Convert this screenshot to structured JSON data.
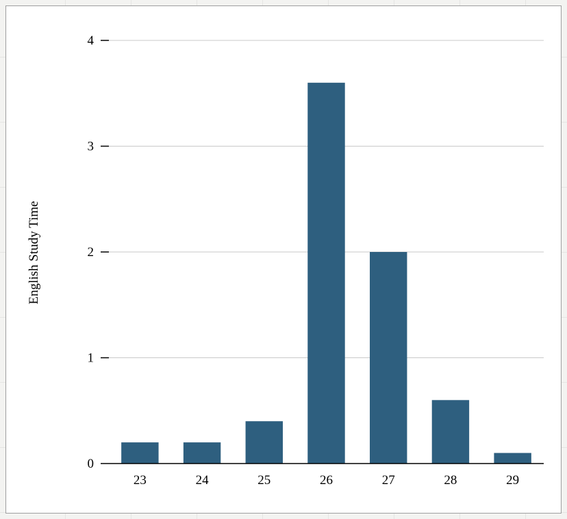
{
  "chart_data": {
    "type": "bar",
    "categories": [
      "23",
      "24",
      "25",
      "26",
      "27",
      "28",
      "29"
    ],
    "values": [
      0.2,
      0.2,
      0.4,
      3.6,
      2.0,
      0.6,
      0.1
    ],
    "title": "",
    "xlabel": "",
    "ylabel": "English Study Time",
    "ylim": [
      0,
      4
    ],
    "yticks": [
      0,
      1,
      2,
      3,
      4
    ],
    "grid": true,
    "legend": "none",
    "bar_color": "#2e5f7f",
    "gridline_color": "#c9c9c9",
    "axis_color": "#000000",
    "tick_label_color": "#000000"
  }
}
